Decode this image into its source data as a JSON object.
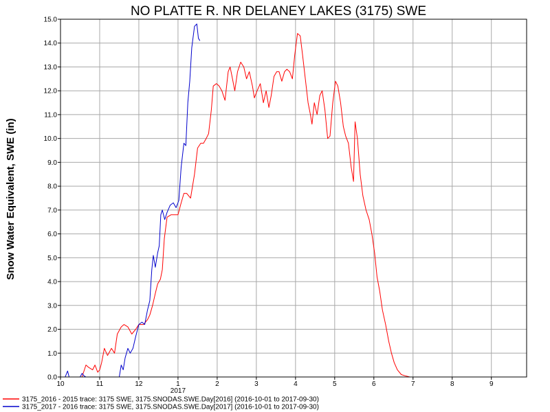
{
  "chart_data": {
    "type": "line",
    "title": "NO PLATTE R. NR DELANEY LAKES (3175) SWE",
    "ylabel": "Snow Water Equivalent, SWE (in)",
    "xlabel": "",
    "ylim": [
      0,
      15
    ],
    "yticks": [
      "0.0",
      "1.0",
      "2.0",
      "3.0",
      "4.0",
      "5.0",
      "6.0",
      "7.0",
      "8.0",
      "9.0",
      "10.0",
      "11.0",
      "12.0",
      "13.0",
      "14.0",
      "15.0"
    ],
    "xticks": [
      {
        "month": 10,
        "label": "10"
      },
      {
        "month": 11,
        "label": "11"
      },
      {
        "month": 12,
        "label": "12"
      },
      {
        "month": 13,
        "label": "1"
      },
      {
        "month": 14,
        "label": "2"
      },
      {
        "month": 15,
        "label": "3"
      },
      {
        "month": 16,
        "label": "4"
      },
      {
        "month": 17,
        "label": "5"
      },
      {
        "month": 18,
        "label": "6"
      },
      {
        "month": 19,
        "label": "7"
      },
      {
        "month": 20,
        "label": "8"
      },
      {
        "month": 21,
        "label": "9"
      }
    ],
    "year_label": "2017",
    "xlim": [
      10,
      21.9
    ],
    "grid": true,
    "legend_position": "bottom",
    "series": [
      {
        "name": "3175_2016 - 2015 trace: 3175 SWE, 3175.SNODAS.SWE.Day[2016] (2016-10-01 to 2017-09-30)",
        "color": "#ff0000",
        "points": [
          [
            10.0,
            0.0
          ],
          [
            10.55,
            0.0
          ],
          [
            10.65,
            0.5
          ],
          [
            10.72,
            0.4
          ],
          [
            10.82,
            0.3
          ],
          [
            10.88,
            0.5
          ],
          [
            10.95,
            0.2
          ],
          [
            11.0,
            0.3
          ],
          [
            11.05,
            0.6
          ],
          [
            11.12,
            1.2
          ],
          [
            11.2,
            0.9
          ],
          [
            11.3,
            1.2
          ],
          [
            11.38,
            1.0
          ],
          [
            11.45,
            1.8
          ],
          [
            11.55,
            2.1
          ],
          [
            11.62,
            2.2
          ],
          [
            11.72,
            2.1
          ],
          [
            11.82,
            1.8
          ],
          [
            11.92,
            2.0
          ],
          [
            12.0,
            2.2
          ],
          [
            12.12,
            2.2
          ],
          [
            12.22,
            2.4
          ],
          [
            12.28,
            2.6
          ],
          [
            12.35,
            3.0
          ],
          [
            12.42,
            3.5
          ],
          [
            12.48,
            3.9
          ],
          [
            12.55,
            4.1
          ],
          [
            12.6,
            4.5
          ],
          [
            12.65,
            5.8
          ],
          [
            12.72,
            6.7
          ],
          [
            12.82,
            6.8
          ],
          [
            12.95,
            6.8
          ],
          [
            13.0,
            6.8
          ],
          [
            13.08,
            7.3
          ],
          [
            13.15,
            7.7
          ],
          [
            13.22,
            7.7
          ],
          [
            13.32,
            7.5
          ],
          [
            13.42,
            8.5
          ],
          [
            13.5,
            9.6
          ],
          [
            13.58,
            9.8
          ],
          [
            13.65,
            9.8
          ],
          [
            13.72,
            10.0
          ],
          [
            13.78,
            10.2
          ],
          [
            13.85,
            11.2
          ],
          [
            13.9,
            12.2
          ],
          [
            13.98,
            12.3
          ],
          [
            14.05,
            12.2
          ],
          [
            14.12,
            12.0
          ],
          [
            14.2,
            11.6
          ],
          [
            14.28,
            12.8
          ],
          [
            14.33,
            13.0
          ],
          [
            14.38,
            12.6
          ],
          [
            14.45,
            12.0
          ],
          [
            14.52,
            12.8
          ],
          [
            14.6,
            13.2
          ],
          [
            14.68,
            13.0
          ],
          [
            14.75,
            12.5
          ],
          [
            14.82,
            12.8
          ],
          [
            14.9,
            12.2
          ],
          [
            14.95,
            11.7
          ],
          [
            15.02,
            12.0
          ],
          [
            15.1,
            12.3
          ],
          [
            15.18,
            11.5
          ],
          [
            15.25,
            12.0
          ],
          [
            15.32,
            11.3
          ],
          [
            15.38,
            11.8
          ],
          [
            15.45,
            12.6
          ],
          [
            15.52,
            12.8
          ],
          [
            15.58,
            12.8
          ],
          [
            15.65,
            12.4
          ],
          [
            15.72,
            12.8
          ],
          [
            15.78,
            12.9
          ],
          [
            15.85,
            12.8
          ],
          [
            15.92,
            12.5
          ],
          [
            15.98,
            13.5
          ],
          [
            16.05,
            14.4
          ],
          [
            16.12,
            14.3
          ],
          [
            16.18,
            13.5
          ],
          [
            16.25,
            12.5
          ],
          [
            16.32,
            11.5
          ],
          [
            16.38,
            11.0
          ],
          [
            16.42,
            10.6
          ],
          [
            16.48,
            11.5
          ],
          [
            16.55,
            11.0
          ],
          [
            16.62,
            11.8
          ],
          [
            16.68,
            12.0
          ],
          [
            16.75,
            11.2
          ],
          [
            16.82,
            10.0
          ],
          [
            16.88,
            10.1
          ],
          [
            16.95,
            11.5
          ],
          [
            17.02,
            12.4
          ],
          [
            17.08,
            12.2
          ],
          [
            17.15,
            11.5
          ],
          [
            17.22,
            10.5
          ],
          [
            17.28,
            10.1
          ],
          [
            17.35,
            9.8
          ],
          [
            17.42,
            8.8
          ],
          [
            17.48,
            8.2
          ],
          [
            17.52,
            10.7
          ],
          [
            17.58,
            10.0
          ],
          [
            17.65,
            8.5
          ],
          [
            17.72,
            7.6
          ],
          [
            17.8,
            7.0
          ],
          [
            17.88,
            6.6
          ],
          [
            17.95,
            6.0
          ],
          [
            18.02,
            5.2
          ],
          [
            18.08,
            4.2
          ],
          [
            18.15,
            3.6
          ],
          [
            18.22,
            2.8
          ],
          [
            18.3,
            2.2
          ],
          [
            18.38,
            1.5
          ],
          [
            18.45,
            1.0
          ],
          [
            18.52,
            0.6
          ],
          [
            18.6,
            0.3
          ],
          [
            18.7,
            0.1
          ],
          [
            18.8,
            0.05
          ],
          [
            18.92,
            0.0
          ],
          [
            21.9,
            0.0
          ]
        ]
      },
      {
        "name": "3175_2017 - 2016 trace: 3175 SWE, 3175.SNODAS.SWE.Day[2017] (2016-10-01 to 2017-09-30)",
        "color": "#0000cc",
        "points": [
          [
            10.0,
            0.0
          ],
          [
            10.12,
            0.0
          ],
          [
            10.18,
            0.25
          ],
          [
            10.22,
            0.0
          ],
          [
            10.5,
            0.0
          ],
          [
            10.55,
            0.15
          ],
          [
            10.6,
            0.05
          ],
          [
            10.65,
            0.0
          ],
          [
            11.5,
            0.0
          ],
          [
            11.55,
            0.5
          ],
          [
            11.6,
            0.3
          ],
          [
            11.65,
            0.8
          ],
          [
            11.72,
            1.2
          ],
          [
            11.78,
            1.0
          ],
          [
            11.85,
            1.2
          ],
          [
            11.92,
            1.7
          ],
          [
            12.0,
            2.2
          ],
          [
            12.08,
            2.3
          ],
          [
            12.15,
            2.2
          ],
          [
            12.22,
            2.8
          ],
          [
            12.28,
            3.2
          ],
          [
            12.33,
            4.5
          ],
          [
            12.37,
            5.1
          ],
          [
            12.42,
            4.6
          ],
          [
            12.48,
            5.2
          ],
          [
            12.52,
            5.5
          ],
          [
            12.56,
            6.8
          ],
          [
            12.6,
            7.0
          ],
          [
            12.66,
            6.6
          ],
          [
            12.72,
            6.9
          ],
          [
            12.8,
            7.2
          ],
          [
            12.88,
            7.3
          ],
          [
            12.95,
            7.1
          ],
          [
            13.02,
            7.4
          ],
          [
            13.08,
            8.8
          ],
          [
            13.15,
            9.8
          ],
          [
            13.2,
            9.7
          ],
          [
            13.25,
            11.5
          ],
          [
            13.3,
            12.4
          ],
          [
            13.35,
            13.8
          ],
          [
            13.42,
            14.7
          ],
          [
            13.48,
            14.8
          ],
          [
            13.52,
            14.2
          ],
          [
            13.56,
            14.1
          ]
        ]
      }
    ]
  }
}
